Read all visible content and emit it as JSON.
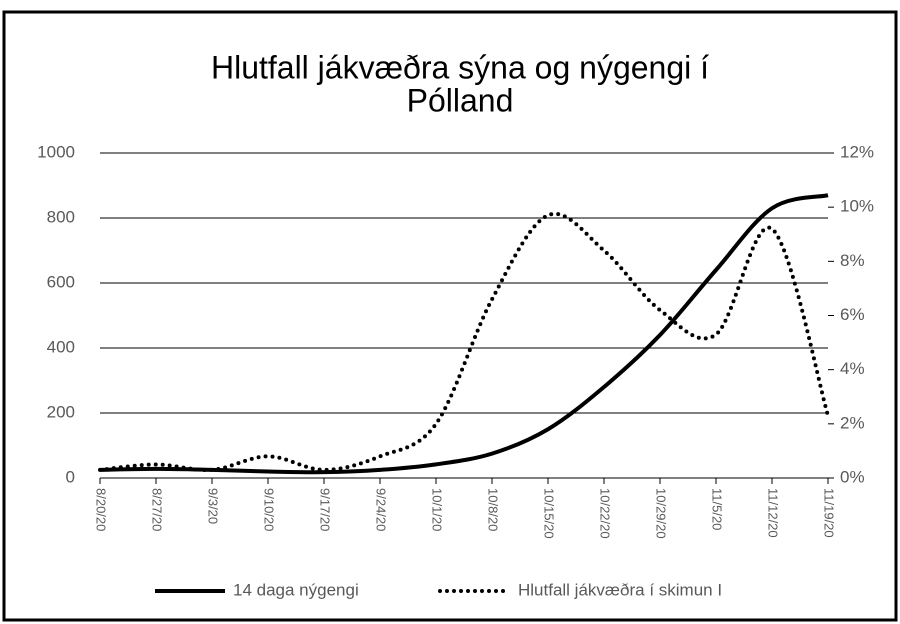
{
  "chart_data": {
    "type": "line",
    "title": [
      "Hlutfall jákvæðra sýna og nýgengi í",
      "Pólland"
    ],
    "categories": [
      "8/20/20",
      "8/27/20",
      "9/3/20",
      "9/10/20",
      "9/17/20",
      "9/24/20",
      "10/1/20",
      "10/8/20",
      "10/15/20",
      "10/22/20",
      "10/29/20",
      "11/5/20",
      "11/12/20",
      "11/19/20"
    ],
    "series": [
      {
        "name": "14 daga nýgengi",
        "color": "#000000",
        "style": "solid",
        "values": [
          25,
          28,
          25,
          20,
          18,
          25,
          42,
          75,
          150,
          280,
          440,
          640,
          830,
          870
        ]
      },
      {
        "name": "Hlutfall jákvæðra í skimun I",
        "color": "#000000",
        "style": "dotted",
        "axis": "y2",
        "values": [
          0.3,
          0.5,
          0.3,
          0.8,
          0.3,
          0.8,
          2.0,
          6.6,
          9.7,
          8.4,
          6.2,
          5.3,
          9.2,
          2.3
        ]
      }
    ],
    "ylim": [
      0,
      1000
    ],
    "yticks": [
      0,
      200,
      400,
      600,
      800,
      1000
    ],
    "y2lim": [
      0,
      12
    ],
    "y2ticks": [
      {
        "value": 0,
        "label": "0%"
      },
      {
        "value": 2,
        "label": "2%"
      },
      {
        "value": 4,
        "label": "4%"
      },
      {
        "value": 6,
        "label": "6%"
      },
      {
        "value": 8,
        "label": "8%"
      },
      {
        "value": 10,
        "label": "10%"
      },
      {
        "value": 12,
        "label": "12%"
      }
    ],
    "grid": true,
    "legend": "bottom"
  }
}
